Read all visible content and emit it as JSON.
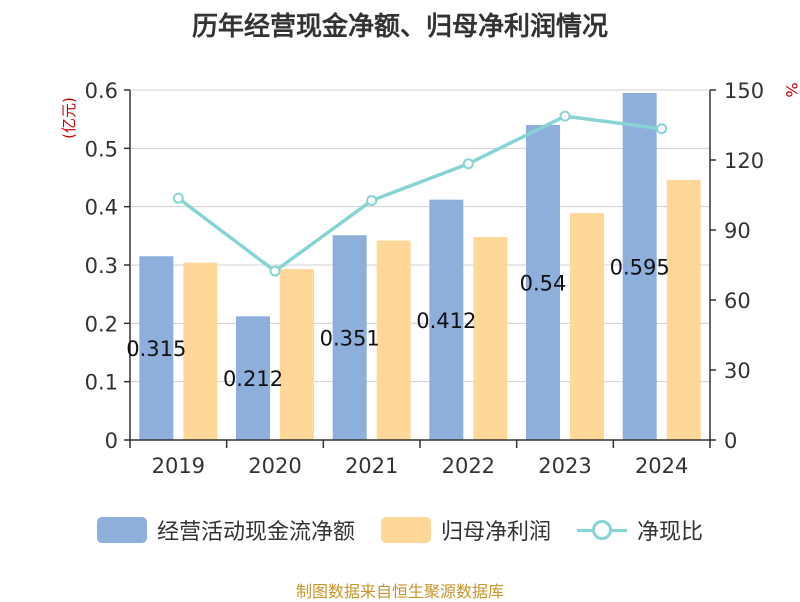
{
  "title": "历年经营现金净额、归母净利润情况",
  "source": "制图数据来自恒生聚源数据库",
  "chart_data": {
    "type": "bar",
    "categories": [
      "2019",
      "2020",
      "2021",
      "2022",
      "2023",
      "2024"
    ],
    "series": [
      {
        "name": "经营活动现金流净额",
        "type": "bar",
        "axis": "left",
        "color": "#8eaedb",
        "values": [
          0.315,
          0.212,
          0.351,
          0.412,
          0.54,
          0.595
        ],
        "labels": [
          "0.315",
          "0.212",
          "0.351",
          "0.412",
          "0.54",
          "0.595"
        ]
      },
      {
        "name": "归母净利润",
        "type": "bar",
        "axis": "left",
        "color": "#ffd899",
        "values": [
          0.304,
          0.293,
          0.342,
          0.348,
          0.389,
          0.446
        ]
      },
      {
        "name": "净现比",
        "type": "line",
        "axis": "right",
        "color": "#88d4d4",
        "values": [
          103.6,
          72.4,
          102.6,
          118.4,
          138.8,
          133.4
        ]
      }
    ],
    "y_left": {
      "label": "(亿元)",
      "min": 0,
      "max": 0.6,
      "ticks": [
        "0",
        "0.1",
        "0.2",
        "0.3",
        "0.4",
        "0.5",
        "0.6"
      ]
    },
    "y_right": {
      "label": "%",
      "min": 0,
      "max": 150,
      "ticks": [
        "0",
        "30",
        "60",
        "90",
        "120",
        "150"
      ]
    },
    "grid": true,
    "legend_position": "bottom"
  }
}
